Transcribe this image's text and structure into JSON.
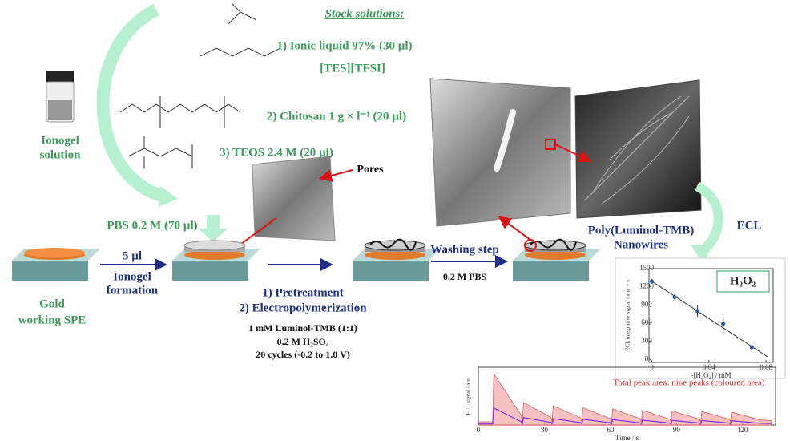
{
  "stock_title": "Stock solutions:",
  "stock": [
    "1) Ionic liquid 97% (30 µl)",
    "[TES][TFSI]",
    "2) Chitosan 1 g × l⁻¹ (20 µl)",
    "3) TEOS 2.4 M (20 µl)"
  ],
  "ionogel_solution": [
    "Ionogel",
    "solution"
  ],
  "pbs": "PBS 0.2 M (70 µl)",
  "pores": "Pores",
  "volume": "5 µl",
  "ionogel_formation": [
    "Ionogel",
    "formation"
  ],
  "gold": [
    "Gold",
    "working SPE"
  ],
  "steps": [
    "1) Pretreatment",
    "2) Electropolymerization"
  ],
  "conditions": [
    "1 mM Luminol-TMB (1:1)",
    "0.2 M H₂SO₄",
    "20 cycles (-0.2 to 1.0 V)"
  ],
  "washing": "Washing step",
  "wash_buffer": "0.2 M PBS",
  "nanowires": [
    "Poly(Luminol-TMB)",
    "Nanowires"
  ],
  "ecl": "ECL",
  "charts": [
    {
      "type": "scatter",
      "title": "H₂O₂",
      "x_label": "-[H₂O₂] / mM",
      "y_label": "ECL integrative signal / a.u. × s",
      "x": [
        0,
        0.016,
        0.032,
        0.05,
        0.07
      ],
      "values": [
        1290,
        1030,
        800,
        590,
        200
      ],
      "errors": [
        40,
        50,
        100,
        120,
        50
      ],
      "color": "#2b5c9e",
      "xlim": [
        -0.002,
        0.085
      ],
      "xticks": [
        0,
        0.04,
        0.08
      ],
      "ylim": [
        -50,
        1500
      ],
      "yticks": [
        0,
        300,
        600,
        900,
        1200,
        1500
      ]
    },
    {
      "type": "line",
      "annotation": "Total peak area: nine peaks (coloured area)",
      "x_label": "Time / s",
      "y_label": "ECL signal / a.u.",
      "x": [
        0,
        6.5,
        7,
        19.5,
        20,
        20.5,
        33,
        33.5,
        34,
        46.5,
        47,
        47.5,
        60,
        60.5,
        61,
        73.5,
        74,
        74.5,
        87,
        87.5,
        88,
        100.5,
        101,
        101.5,
        114,
        114.5,
        115,
        128,
        133
      ],
      "values": [
        0.05,
        0.05,
        0.8,
        0.15,
        0.05,
        0.35,
        0.12,
        0.05,
        0.3,
        0.11,
        0.05,
        0.27,
        0.1,
        0.05,
        0.25,
        0.1,
        0.05,
        0.23,
        0.09,
        0.05,
        0.22,
        0.09,
        0.05,
        0.21,
        0.09,
        0.05,
        0.2,
        0.08,
        0.07
      ],
      "color": "#8a2be2",
      "fill": "#f4a6a6",
      "xlim": [
        0,
        135
      ],
      "xticks": [
        0,
        30,
        60,
        90,
        120
      ],
      "ylim": [
        0,
        0.9
      ]
    }
  ]
}
